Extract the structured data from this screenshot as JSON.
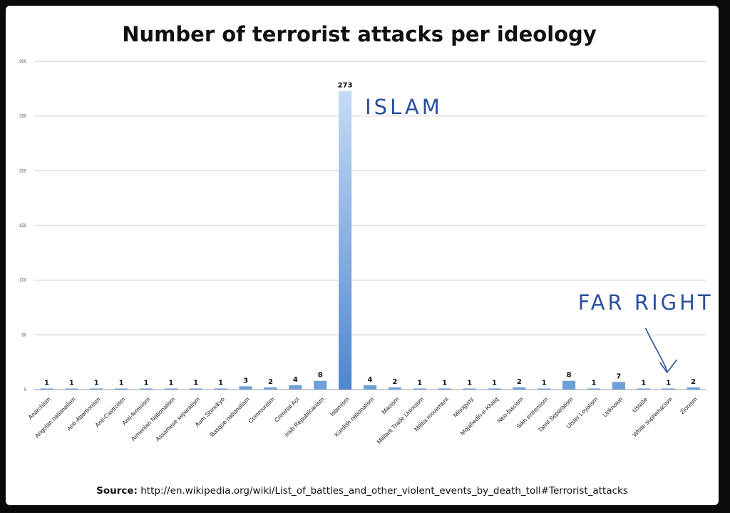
{
  "chart_data": {
    "type": "bar",
    "title": "Number of terrorist attacks per ideology",
    "xlabel": "",
    "ylabel": "",
    "ylim": [
      0,
      300
    ],
    "yticks": [
      0,
      50,
      100,
      150,
      200,
      250,
      300
    ],
    "grid": true,
    "categories": [
      "Anarchism",
      "Angolan nationalism",
      "Anti-Abortionism",
      "Anti-Castroism",
      "Anti-feminism",
      "Armenian Nationalism",
      "Assamese separatism",
      "Aum Shinrikyo",
      "Basque nationalism",
      "Communism",
      "Criminal Act",
      "Irish Republicanism",
      "Islamism",
      "Kurdish nationalism",
      "Maoism",
      "Militant Trade Unionism",
      "Militia movement",
      "Misogyny",
      "Mojahedin-e-Khalq",
      "Neo-fascism",
      "Sikh extremism",
      "Tamil Separatism",
      "Ulster Loyalism",
      "Unknown",
      "Ustaše",
      "White supremacism",
      "Zionism"
    ],
    "values": [
      1,
      1,
      1,
      1,
      1,
      1,
      1,
      1,
      3,
      2,
      4,
      8,
      273,
      4,
      2,
      1,
      1,
      1,
      1,
      2,
      1,
      8,
      1,
      7,
      1,
      1,
      2
    ],
    "bar_color": "#6f9fd8",
    "annotations": [
      {
        "text": "ISLAM",
        "target": "Islamism"
      },
      {
        "text": "FAR RIGHT",
        "target": "White supremacism"
      }
    ]
  },
  "source": {
    "label": "Source:",
    "url": "http://en.wikipedia.org/wiki/List_of_battles_and_other_violent_events_by_death_toll#Terrorist_attacks"
  }
}
